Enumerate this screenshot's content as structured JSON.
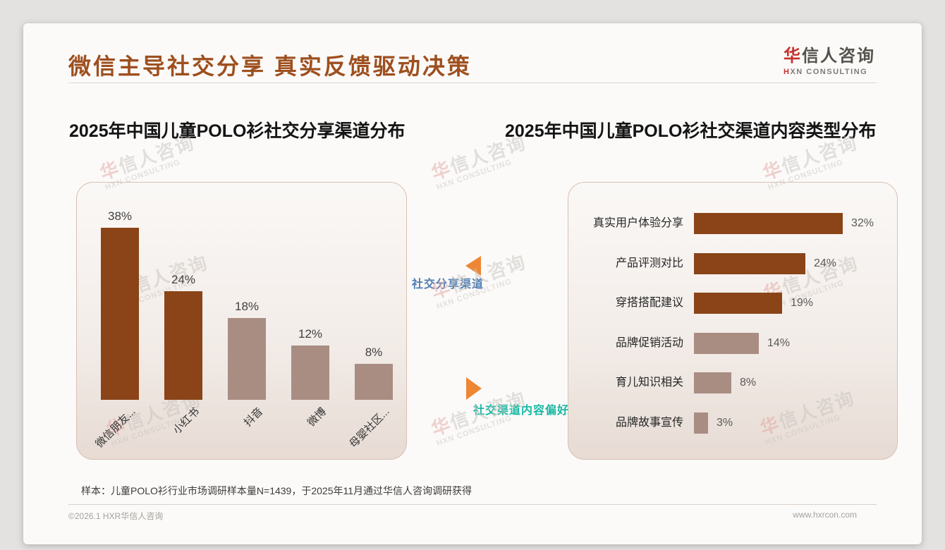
{
  "header": {
    "title": "微信主导社交分享 真实反馈驱动决策",
    "logo": {
      "brand_highlight": "华",
      "brand_rest": "信人咨询",
      "sub_highlight": "H",
      "sub_rest": "XN CONSULTING"
    }
  },
  "watermark": {
    "line1": "华信人咨询",
    "line1_highlight": "华",
    "line1_rest": "信人咨询",
    "line2": "HXN CONSULTING"
  },
  "annotations": {
    "share_channel_label": "社交分享渠道",
    "content_pref_label": "社交渠道内容偏好"
  },
  "colors": {
    "title_brown": "#9e4f1e",
    "bar_primary": "#8a4418",
    "bar_secondary": "#a98d83",
    "arrow_orange": "#ed8733",
    "share_label_blue": "#4e7cb5",
    "content_label_teal": "#17b9a3",
    "logo_red": "#c5302c",
    "panel_bg_top": "#faf8f6",
    "panel_bg_bottom": "#e7dbd4"
  },
  "footnote": "样本：儿童POLO衫行业市场调研样本量N=1439，于2025年11月通过华信人咨询调研获得",
  "footer": {
    "left": "©2026.1 HXR华信人咨询",
    "right": "www.hxrcon.com"
  },
  "chart_data": [
    {
      "type": "bar",
      "orientation": "vertical",
      "title": "2025年中国儿童POLO衫社交分享渠道分布",
      "categories": [
        "微信朋友...",
        "小红书",
        "抖音",
        "微博",
        "母婴社区..."
      ],
      "values": [
        38,
        24,
        18,
        12,
        8
      ],
      "unit": "%",
      "value_labels": [
        "38%",
        "24%",
        "18%",
        "12%",
        "8%"
      ],
      "bar_colors": [
        "#8a4418",
        "#8a4418",
        "#a98d83",
        "#a98d83",
        "#a98d83"
      ],
      "xlabel": "",
      "ylabel": "",
      "ylim": [
        0,
        40
      ],
      "grid": false,
      "legend": false
    },
    {
      "type": "bar",
      "orientation": "horizontal",
      "title": "2025年中国儿童POLO衫社交渠道内容类型分布",
      "categories": [
        "真实用户体验分享",
        "产品评测对比",
        "穿搭搭配建议",
        "品牌促销活动",
        "育儿知识相关",
        "品牌故事宣传"
      ],
      "values": [
        32,
        24,
        19,
        14,
        8,
        3
      ],
      "unit": "%",
      "value_labels": [
        "32%",
        "24%",
        "19%",
        "14%",
        "8%",
        "3%"
      ],
      "bar_colors": [
        "#8a4418",
        "#8a4418",
        "#8a4418",
        "#a98d83",
        "#a98d83",
        "#a98d83"
      ],
      "xlabel": "",
      "ylabel": "",
      "xlim": [
        0,
        35
      ],
      "grid": false,
      "legend": false
    }
  ]
}
